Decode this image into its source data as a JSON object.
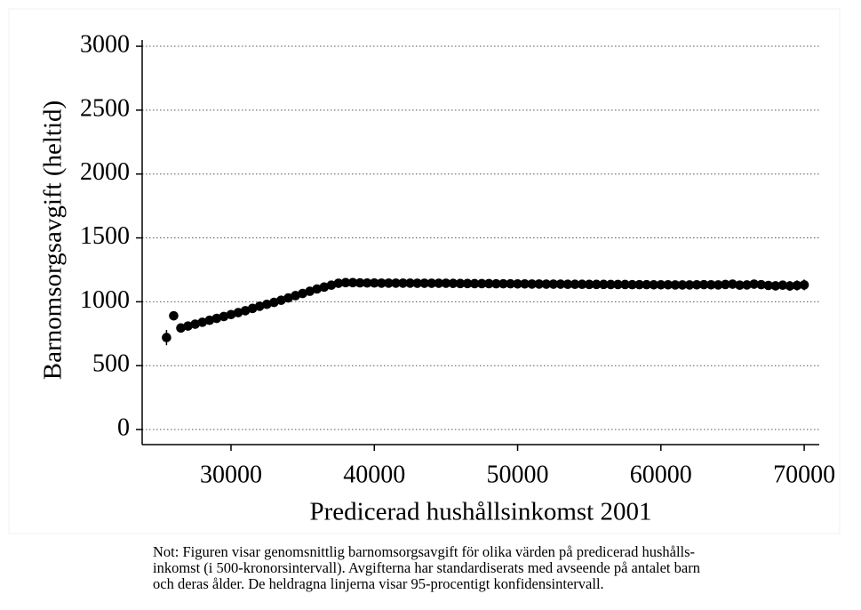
{
  "chart_data": {
    "type": "scatter",
    "y_label": "Barnomsorgsavgift (heltid)",
    "x_label": "Predicerad hushållsinkomst 2001",
    "note": [
      "Not: Figuren visar genomsnittlig barnomsorgsavgift för olika värden på predicerad hushålls-",
      "inkomst (i 500-kronorsintervall). Avgifterna har standardiserats med avseende på antalet barn",
      "och deras ålder. De heldragna linjerna visar 95-procentigt konfidensintervall."
    ],
    "xlim": [
      23800,
      71050
    ],
    "ylim": [
      -118,
      3049
    ],
    "xticks": [
      30000,
      40000,
      50000,
      60000,
      70000
    ],
    "yticks": [
      0,
      500,
      1000,
      1500,
      2000,
      2500,
      3000
    ],
    "grid": true,
    "color": "#000000",
    "x": [
      25500,
      26000,
      26500,
      27000,
      27500,
      28000,
      28500,
      29000,
      29500,
      30000,
      30500,
      31000,
      31500,
      32000,
      32500,
      33000,
      33500,
      34000,
      34500,
      35000,
      35500,
      36000,
      36500,
      37000,
      37500,
      38000,
      38500,
      39000,
      39500,
      40000,
      40500,
      41000,
      41500,
      42000,
      42500,
      43000,
      43500,
      44000,
      44500,
      45000,
      45500,
      46000,
      46500,
      47000,
      47500,
      48000,
      48500,
      49000,
      49500,
      50000,
      50500,
      51000,
      51500,
      52000,
      52500,
      53000,
      53500,
      54000,
      54500,
      55000,
      55500,
      56000,
      56500,
      57000,
      57500,
      58000,
      58500,
      59000,
      59500,
      60000,
      60500,
      61000,
      61500,
      62000,
      62500,
      63000,
      63500,
      64000,
      64500,
      65000,
      65500,
      66000,
      66500,
      67000,
      67500,
      68000,
      68500,
      69000,
      69500,
      70000
    ],
    "values": [
      720,
      890,
      795,
      810,
      825,
      840,
      855,
      870,
      885,
      900,
      915,
      930,
      948,
      965,
      980,
      995,
      1012,
      1030,
      1048,
      1065,
      1082,
      1100,
      1115,
      1130,
      1145,
      1150,
      1150,
      1148,
      1147,
      1147,
      1146,
      1146,
      1146,
      1146,
      1146,
      1145,
      1145,
      1145,
      1145,
      1145,
      1144,
      1143,
      1143,
      1142,
      1142,
      1142,
      1141,
      1141,
      1141,
      1140,
      1140,
      1139,
      1139,
      1138,
      1138,
      1138,
      1137,
      1137,
      1137,
      1136,
      1136,
      1136,
      1135,
      1135,
      1135,
      1134,
      1134,
      1134,
      1133,
      1133,
      1133,
      1132,
      1132,
      1132,
      1133,
      1134,
      1133,
      1132,
      1135,
      1138,
      1130,
      1132,
      1138,
      1134,
      1128,
      1125,
      1130,
      1124,
      1128,
      1132
    ],
    "errors": [
      60,
      35,
      25,
      20,
      18,
      16,
      15,
      14,
      13,
      12,
      12,
      11,
      11,
      10,
      10,
      10,
      10,
      10,
      10,
      10,
      10,
      10,
      10,
      10,
      10,
      10,
      10,
      9,
      9,
      9,
      9,
      9,
      9,
      9,
      9,
      9,
      9,
      9,
      9,
      9,
      8,
      8,
      8,
      8,
      8,
      8,
      8,
      8,
      8,
      8,
      8,
      8,
      8,
      8,
      8,
      8,
      8,
      8,
      8,
      8,
      9,
      9,
      9,
      9,
      9,
      10,
      10,
      10,
      10,
      11,
      11,
      12,
      12,
      13,
      14,
      15,
      16,
      17,
      18,
      20,
      22,
      24,
      26,
      28,
      30,
      32,
      35,
      38,
      40,
      42
    ]
  }
}
